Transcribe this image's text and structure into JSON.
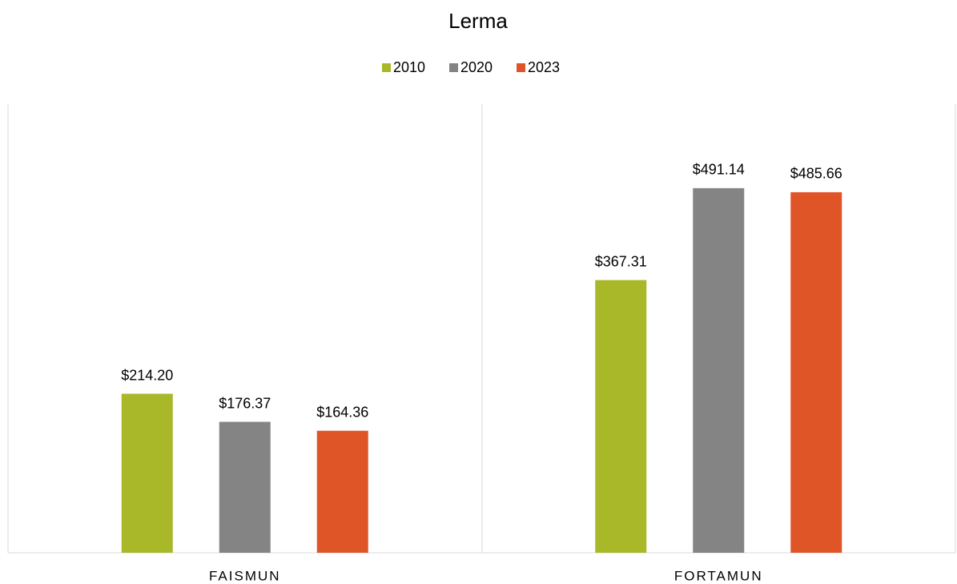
{
  "chart_data": {
    "type": "bar",
    "title": "Lerma",
    "categories": [
      "FAISMUN",
      "FORTAMUN"
    ],
    "series": [
      {
        "name": "2010",
        "color": "#a9b829",
        "values": [
          214.2,
          367.31
        ],
        "value_labels": [
          "$214.20",
          "$367.31"
        ]
      },
      {
        "name": "2020",
        "color": "#848484",
        "values": [
          176.37,
          491.14
        ],
        "value_labels": [
          "$176.37",
          "$491.14"
        ]
      },
      {
        "name": "2023",
        "color": "#e05528",
        "values": [
          164.36,
          485.66
        ],
        "value_labels": [
          "$164.36",
          "$485.66"
        ]
      }
    ],
    "ylim": [
      0,
      600
    ],
    "legend": "top"
  }
}
